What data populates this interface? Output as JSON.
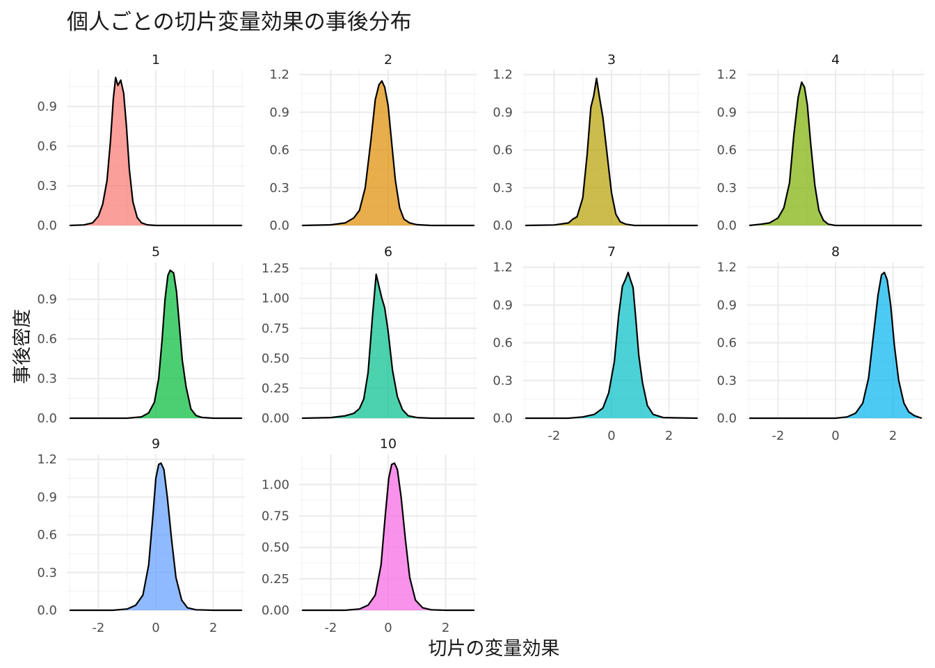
{
  "chart_data": {
    "type": "area",
    "title": "個人ごとの切片変量効果の事後分布",
    "xlabel": "切片の変量効果",
    "ylabel": "事後密度",
    "layout": "facet_wrap, 3 rows x 4 columns, free y scales",
    "grid": true,
    "x_ticks": [
      -2,
      0,
      2
    ],
    "xlim": [
      -3.1,
      3.1
    ],
    "panels": [
      {
        "label": "1",
        "color": "#F8766D",
        "ylim": [
          0,
          1.18
        ],
        "y_ticks": [
          "0.0",
          "0.3",
          "0.6",
          "0.9"
        ],
        "x": [
          -3.0,
          -2.5,
          -2.2,
          -2.0,
          -1.85,
          -1.7,
          -1.58,
          -1.48,
          -1.4,
          -1.32,
          -1.22,
          -1.12,
          -1.02,
          -0.92,
          -0.8,
          -0.65,
          -0.5,
          -0.3,
          0.0,
          1.0,
          3.0
        ],
        "y": [
          0.0,
          0.004,
          0.02,
          0.07,
          0.16,
          0.34,
          0.64,
          0.96,
          1.12,
          1.06,
          1.1,
          1.0,
          0.74,
          0.42,
          0.18,
          0.06,
          0.02,
          0.005,
          0.0,
          0.0,
          0.0
        ]
      },
      {
        "label": "2",
        "color": "#DE8C00",
        "ylim": [
          0,
          1.24
        ],
        "y_ticks": [
          "0.0",
          "0.3",
          "0.6",
          "0.9",
          "1.2"
        ],
        "x": [
          -3.0,
          -2.0,
          -1.5,
          -1.2,
          -1.0,
          -0.8,
          -0.6,
          -0.45,
          -0.32,
          -0.22,
          -0.12,
          0.0,
          0.12,
          0.25,
          0.4,
          0.55,
          0.75,
          1.0,
          1.5,
          3.0
        ],
        "y": [
          0.0,
          0.005,
          0.02,
          0.06,
          0.12,
          0.3,
          0.68,
          1.0,
          1.12,
          1.15,
          1.1,
          0.95,
          0.66,
          0.36,
          0.14,
          0.05,
          0.02,
          0.006,
          0.0,
          0.0
        ]
      },
      {
        "label": "3",
        "color": "#B79F00",
        "ylim": [
          0,
          1.24
        ],
        "y_ticks": [
          "0.0",
          "0.3",
          "0.6",
          "0.9",
          "1.2"
        ],
        "x": [
          -3.0,
          -2.0,
          -1.5,
          -1.35,
          -1.2,
          -1.0,
          -0.85,
          -0.72,
          -0.62,
          -0.52,
          -0.42,
          -0.3,
          -0.15,
          0.0,
          0.15,
          0.3,
          0.5,
          0.8,
          1.5,
          3.0
        ],
        "y": [
          0.0,
          0.004,
          0.02,
          0.05,
          0.07,
          0.22,
          0.56,
          0.94,
          1.03,
          1.17,
          1.02,
          0.86,
          0.56,
          0.26,
          0.09,
          0.03,
          0.01,
          0.0,
          0.0,
          0.0
        ]
      },
      {
        "label": "4",
        "color": "#7CAE00",
        "ylim": [
          0,
          1.24
        ],
        "y_ticks": [
          "0.0",
          "0.3",
          "0.6",
          "0.9",
          "1.2"
        ],
        "x": [
          -3.0,
          -2.6,
          -2.3,
          -2.0,
          -1.8,
          -1.6,
          -1.45,
          -1.3,
          -1.18,
          -1.08,
          -0.98,
          -0.86,
          -0.72,
          -0.58,
          -0.42,
          -0.25,
          0.0,
          0.5,
          3.0
        ],
        "y": [
          0.0,
          0.01,
          0.02,
          0.06,
          0.14,
          0.34,
          0.72,
          1.02,
          1.14,
          1.1,
          0.96,
          0.64,
          0.32,
          0.12,
          0.04,
          0.01,
          0.0,
          0.0,
          0.0
        ]
      },
      {
        "label": "5",
        "color": "#00BA38",
        "ylim": [
          0,
          1.18
        ],
        "y_ticks": [
          "0.0",
          "0.3",
          "0.6",
          "0.9"
        ],
        "x": [
          -3.0,
          -1.0,
          -0.5,
          -0.25,
          -0.05,
          0.1,
          0.22,
          0.32,
          0.42,
          0.5,
          0.62,
          0.72,
          0.82,
          0.92,
          1.05,
          1.22,
          1.4,
          1.6,
          2.0,
          3.0
        ],
        "y": [
          0.0,
          0.0,
          0.01,
          0.04,
          0.12,
          0.3,
          0.6,
          0.9,
          1.08,
          1.12,
          1.1,
          0.96,
          0.7,
          0.44,
          0.24,
          0.07,
          0.02,
          0.006,
          0.0,
          0.0
        ]
      },
      {
        "label": "6",
        "color": "#00C08B",
        "ylim": [
          0,
          1.3
        ],
        "y_ticks": [
          "0.00",
          "0.25",
          "0.50",
          "0.75",
          "1.00",
          "1.25"
        ],
        "x": [
          -3.0,
          -2.0,
          -1.5,
          -1.2,
          -1.0,
          -0.85,
          -0.7,
          -0.55,
          -0.42,
          -0.32,
          -0.22,
          -0.12,
          0.0,
          0.15,
          0.32,
          0.5,
          0.7,
          1.0,
          1.5,
          3.0
        ],
        "y": [
          0.0,
          0.005,
          0.02,
          0.04,
          0.08,
          0.16,
          0.38,
          0.84,
          1.2,
          1.1,
          1.0,
          0.92,
          0.72,
          0.4,
          0.18,
          0.07,
          0.02,
          0.005,
          0.0,
          0.0
        ]
      },
      {
        "label": "7",
        "color": "#00BFC4",
        "ylim": [
          0,
          1.24
        ],
        "y_ticks": [
          "0.0",
          "0.3",
          "0.6",
          "0.9",
          "1.2"
        ],
        "x": [
          -3.0,
          -1.5,
          -1.0,
          -0.6,
          -0.3,
          -0.1,
          0.1,
          0.25,
          0.38,
          0.48,
          0.58,
          0.66,
          0.75,
          0.85,
          0.95,
          1.08,
          1.25,
          1.45,
          1.8,
          3.0
        ],
        "y": [
          0.0,
          0.0,
          0.01,
          0.03,
          0.08,
          0.2,
          0.45,
          0.82,
          1.05,
          1.1,
          1.16,
          1.1,
          1.04,
          0.78,
          0.5,
          0.28,
          0.1,
          0.03,
          0.005,
          0.0
        ]
      },
      {
        "label": "8",
        "color": "#00B4F0",
        "ylim": [
          0,
          1.24
        ],
        "y_ticks": [
          "0.0",
          "0.3",
          "0.6",
          "0.9",
          "1.2"
        ],
        "x": [
          -3.0,
          0.0,
          0.4,
          0.7,
          0.95,
          1.15,
          1.32,
          1.48,
          1.6,
          1.7,
          1.8,
          1.92,
          2.05,
          2.2,
          2.38,
          2.55,
          2.75,
          3.0
        ],
        "y": [
          0.0,
          0.0,
          0.01,
          0.04,
          0.12,
          0.32,
          0.66,
          0.98,
          1.14,
          1.16,
          1.1,
          0.9,
          0.58,
          0.3,
          0.12,
          0.05,
          0.02,
          0.0
        ]
      },
      {
        "label": "9",
        "color": "#619CFF",
        "ylim": [
          0,
          1.24
        ],
        "y_ticks": [
          "0.0",
          "0.3",
          "0.6",
          "0.9",
          "1.2"
        ],
        "x": [
          -3.0,
          -1.5,
          -1.0,
          -0.7,
          -0.45,
          -0.25,
          -0.1,
          0.0,
          0.1,
          0.18,
          0.28,
          0.4,
          0.55,
          0.7,
          0.9,
          1.1,
          1.4,
          2.0,
          3.0
        ],
        "y": [
          0.0,
          0.0,
          0.01,
          0.04,
          0.12,
          0.36,
          0.76,
          1.05,
          1.16,
          1.17,
          1.12,
          0.9,
          0.56,
          0.26,
          0.08,
          0.02,
          0.004,
          0.0,
          0.0
        ]
      },
      {
        "label": "10",
        "color": "#F564E3",
        "ylim": [
          0,
          1.24
        ],
        "y_ticks": [
          "0.00",
          "0.25",
          "0.50",
          "0.75",
          "1.00"
        ],
        "x": [
          -3.0,
          -1.5,
          -1.0,
          -0.7,
          -0.45,
          -0.25,
          -0.1,
          0.02,
          0.12,
          0.22,
          0.32,
          0.45,
          0.6,
          0.75,
          0.95,
          1.2,
          1.5,
          2.0,
          3.0
        ],
        "y": [
          0.0,
          0.0,
          0.01,
          0.04,
          0.12,
          0.36,
          0.76,
          1.05,
          1.16,
          1.17,
          1.12,
          0.9,
          0.56,
          0.26,
          0.08,
          0.02,
          0.004,
          0.0,
          0.0
        ]
      }
    ]
  }
}
